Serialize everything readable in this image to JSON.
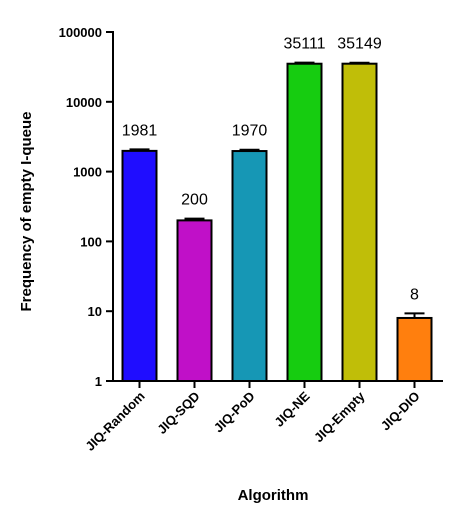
{
  "chart_data": {
    "type": "bar",
    "title": "",
    "xlabel": "Algorithm",
    "ylabel": "Frequency of empty I-queue",
    "y_scale": "log",
    "ylim": [
      1,
      100000
    ],
    "y_ticks": [
      1,
      10,
      100,
      1000,
      10000,
      100000
    ],
    "y_tick_labels": [
      "1",
      "10",
      "100",
      "1000",
      "10000",
      "100000"
    ],
    "grid": false,
    "legend": "none",
    "categories": [
      "JIQ-Random",
      "JIQ-SQD",
      "JIQ-PoD",
      "JIQ-NE",
      "JIQ-Empty",
      "JIQ-DIO"
    ],
    "values": [
      1981,
      200,
      1970,
      35111,
      35149,
      8
    ],
    "data_labels": [
      "1981",
      "200",
      "1970",
      "35111",
      "35149",
      "8"
    ],
    "error_upper": [
      2080,
      212,
      2060,
      36400,
      36300,
      9.3
    ],
    "colors": [
      "#1f0dff",
      "#c010c8",
      "#1697b5",
      "#16cc10",
      "#c0be08",
      "#ff7f0e"
    ]
  }
}
